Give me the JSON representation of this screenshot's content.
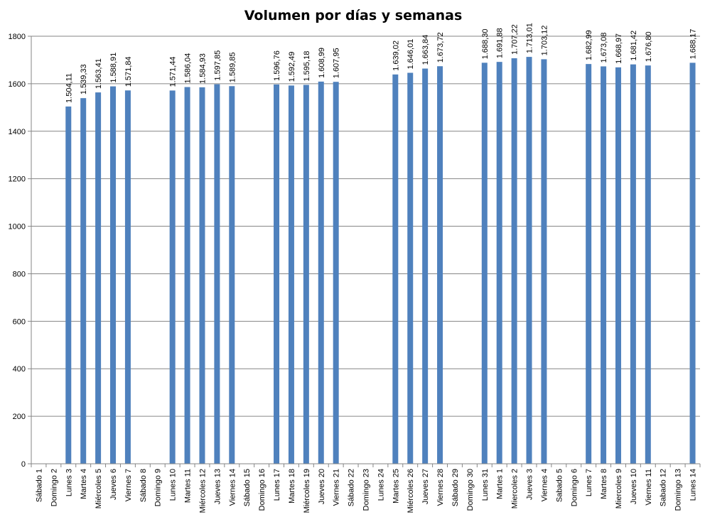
{
  "chart_data": {
    "type": "bar",
    "title": "Volumen por días y semanas",
    "xlabel": "",
    "ylabel": "",
    "ylim": [
      0,
      1800
    ],
    "yticks": [
      0,
      200,
      400,
      600,
      800,
      1000,
      1200,
      1400,
      1600,
      1800
    ],
    "grid": true,
    "legend": "none",
    "bar_color": "#4F81BD",
    "grid_color": "#868686",
    "categories": [
      "Sábado 1",
      "Domingo 2",
      "Lunes 3",
      "Martes 4",
      "Miércoles 5",
      "Jueves 6",
      "Viernes 7",
      "Sábado 8",
      "Domingo 9",
      "Lunes 10",
      "Martes 11",
      "Miércoles 12",
      "Jueves 13",
      "Viernes 14",
      "Sábado 15",
      "Domingo 16",
      "Lunes 17",
      "Martes 18",
      "Miércoles 19",
      "Jueves 20",
      "Viernes 21",
      "Sábado 22",
      "Domingo 23",
      "Lunes 24",
      "Martes 25",
      "Miércoles 26",
      "Jueves 27",
      "Viernes 28",
      "Sábado 29",
      "Domingo 30",
      "Lunes 31",
      "Martes 1",
      "Miercoles 2",
      "Jueves 3",
      "Viernes 4",
      "Sabado 5",
      "Domingo 6",
      "Lunes 7",
      "Martes 8",
      "Miercoles 9",
      "Jueves 10",
      "Viernes 11",
      "Sabado 12",
      "Domingo 13",
      "Lunes 14"
    ],
    "values": [
      null,
      null,
      1504.11,
      1539.33,
      1563.41,
      1588.91,
      1571.84,
      null,
      null,
      1571.44,
      1586.04,
      1584.93,
      1597.85,
      1589.85,
      null,
      null,
      1596.76,
      1592.49,
      1595.18,
      1608.99,
      1607.95,
      null,
      null,
      null,
      1639.02,
      1646.01,
      1663.84,
      1673.72,
      null,
      null,
      1688.3,
      1691.88,
      1707.22,
      1713.01,
      1703.12,
      null,
      null,
      1682.99,
      1673.08,
      1668.97,
      1681.42,
      1676.8,
      null,
      null,
      1688.17
    ],
    "data_labels": [
      null,
      null,
      "1.504,11",
      "1.539,33",
      "1.563,41",
      "1.588,91",
      "1.571,84",
      null,
      null,
      "1.571,44",
      "1.586,04",
      "1.584,93",
      "1.597,85",
      "1.589,85",
      null,
      null,
      "1.596,76",
      "1.592,49",
      "1.595,18",
      "1.608,99",
      "1.607,95",
      null,
      null,
      null,
      "1.639,02",
      "1.646,01",
      "1.663,84",
      "1.673,72",
      null,
      null,
      "1.688,30",
      "1.691,88",
      "1.707,22",
      "1.713,01",
      "1.703,12",
      null,
      null,
      "1.682,99",
      "1.673,08",
      "1.668,97",
      "1.681,42",
      "1.676,80",
      null,
      null,
      "1.688,17"
    ]
  }
}
